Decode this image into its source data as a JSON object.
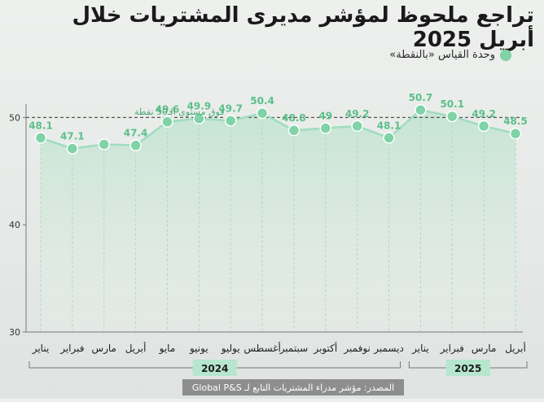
{
  "title": "تراجع ملحوظ لمؤشر مديرى المشتريات خلال أبريل 2025",
  "legend": {
    "label": "وحدة القياس «بالنقطة»",
    "color": "#7fd3a6"
  },
  "threshold_label": "فوق مستوى الـ50 نقطة",
  "source": "المصدر: مؤشر مدراء المشتريات التابع لـ Global P&S",
  "chart_data": {
    "type": "line",
    "categories": [
      "يناير",
      "فبراير",
      "مارس",
      "أبريل",
      "مايو",
      "يونيو",
      "يوليو",
      "أغسطس",
      "سبتمبر",
      "أكتوبر",
      "نوفمبر",
      "ديسمبر",
      "يناير",
      "فبراير",
      "مارس",
      "أبريل"
    ],
    "values": [
      48.1,
      47.1,
      null,
      47.4,
      49.6,
      49.9,
      49.7,
      50.4,
      48.8,
      49,
      49.2,
      48.1,
      50.7,
      50.1,
      49.2,
      48.5
    ],
    "value_labels": [
      "48.1",
      "47.1",
      "",
      "47.4",
      "49.6",
      "49.9",
      "49.7",
      "50.4",
      "48.8",
      "49",
      "49.2",
      "48.1",
      "50.7",
      "50.1",
      "49.2",
      "48.5"
    ],
    "plotted_values": [
      48.1,
      47.1,
      47.5,
      47.4,
      49.6,
      49.9,
      49.7,
      50.4,
      48.8,
      49,
      49.2,
      48.1,
      50.7,
      50.1,
      49.2,
      48.5
    ],
    "ylim": [
      30,
      52
    ],
    "yticks": [
      "30",
      "40",
      "50"
    ],
    "threshold": 50,
    "groups": [
      {
        "label": "2024",
        "from": 0,
        "to": 11
      },
      {
        "label": "2025",
        "from": 12,
        "to": 15
      }
    ],
    "x_direction": "right-to-left",
    "grid": false,
    "colors": {
      "line": "#9fdcbf",
      "marker": "#7fd3a6",
      "label": "#5cc08a",
      "area_top": "#cfe9dc",
      "axis": "#555555"
    }
  }
}
